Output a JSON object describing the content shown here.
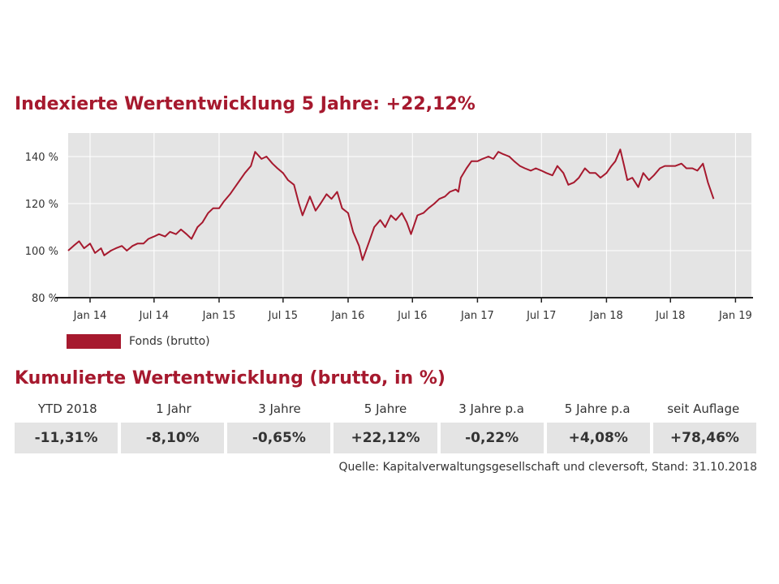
{
  "chart_title": "Indexierte Wertentwicklung 5 Jahre: +22,12%",
  "legend_label": "Fonds (brutto)",
  "table_title": "Kumulierte Wertentwicklung (brutto, in %)",
  "table": {
    "headers": [
      "YTD 2018",
      "1 Jahr",
      "3 Jahre",
      "5 Jahre",
      "3 Jahre p.a",
      "5 Jahre p.a",
      "seit Auflage"
    ],
    "values": [
      "-11,31%",
      "-8,10%",
      "-0,65%",
      "+22,12%",
      "-0,22%",
      "+4,08%",
      "+78,46%"
    ]
  },
  "source": "Quelle: Kapitalverwaltungsgesellschaft und cleversoft, Stand: 31.10.2018",
  "colors": {
    "accent": "#a6192e",
    "plot_bg": "#e4e4e4"
  },
  "chart_data": {
    "type": "line",
    "title": "Indexierte Wertentwicklung 5 Jahre: +22,12%",
    "xlabel": "",
    "ylabel": "",
    "ylim": [
      80,
      150
    ],
    "xlim": [
      "2013-10-31",
      "2019-02-15"
    ],
    "y_ticks": [
      80,
      100,
      120,
      140
    ],
    "y_tick_labels": [
      "80 %",
      "100 %",
      "120 %",
      "140 %"
    ],
    "x_ticks": [
      "2014-01-01",
      "2014-07-01",
      "2015-01-01",
      "2015-07-01",
      "2016-01-01",
      "2016-07-01",
      "2017-01-01",
      "2017-07-01",
      "2018-01-01",
      "2018-07-01",
      "2019-01-01"
    ],
    "x_tick_labels": [
      "Jan 14",
      "Jul 14",
      "Jan 15",
      "Jul 15",
      "Jan 16",
      "Jul 16",
      "Jan 17",
      "Jul 17",
      "Jan 18",
      "Jul 18",
      "Jan 19"
    ],
    "grid": true,
    "legend": "bottom-left",
    "series": [
      {
        "name": "Fonds (brutto)",
        "color": "#a6192e",
        "x": [
          "2013-10-31",
          "2013-11-15",
          "2013-12-01",
          "2013-12-15",
          "2014-01-01",
          "2014-01-15",
          "2014-02-01",
          "2014-02-10",
          "2014-03-01",
          "2014-03-15",
          "2014-04-01",
          "2014-04-15",
          "2014-05-01",
          "2014-05-15",
          "2014-06-01",
          "2014-06-15",
          "2014-07-01",
          "2014-07-15",
          "2014-08-01",
          "2014-08-15",
          "2014-09-01",
          "2014-09-15",
          "2014-10-01",
          "2014-10-15",
          "2014-11-01",
          "2014-11-15",
          "2014-12-01",
          "2014-12-15",
          "2015-01-01",
          "2015-01-15",
          "2015-02-01",
          "2015-02-15",
          "2015-03-01",
          "2015-03-15",
          "2015-04-01",
          "2015-04-13",
          "2015-05-01",
          "2015-05-15",
          "2015-06-01",
          "2015-06-15",
          "2015-07-01",
          "2015-07-15",
          "2015-08-01",
          "2015-08-15",
          "2015-08-25",
          "2015-09-15",
          "2015-10-01",
          "2015-10-15",
          "2015-11-01",
          "2015-11-15",
          "2015-12-01",
          "2015-12-15",
          "2016-01-01",
          "2016-01-15",
          "2016-02-01",
          "2016-02-11",
          "2016-03-01",
          "2016-03-15",
          "2016-04-01",
          "2016-04-15",
          "2016-05-01",
          "2016-05-15",
          "2016-06-01",
          "2016-06-15",
          "2016-06-27",
          "2016-07-15",
          "2016-08-01",
          "2016-08-15",
          "2016-09-01",
          "2016-09-15",
          "2016-10-01",
          "2016-10-15",
          "2016-11-01",
          "2016-11-08",
          "2016-11-15",
          "2016-12-01",
          "2016-12-15",
          "2017-01-01",
          "2017-01-15",
          "2017-02-01",
          "2017-02-15",
          "2017-03-01",
          "2017-03-15",
          "2017-04-01",
          "2017-04-15",
          "2017-05-01",
          "2017-05-15",
          "2017-06-01",
          "2017-06-15",
          "2017-07-01",
          "2017-07-15",
          "2017-08-01",
          "2017-08-15",
          "2017-09-01",
          "2017-09-15",
          "2017-10-01",
          "2017-10-15",
          "2017-11-01",
          "2017-11-15",
          "2017-12-01",
          "2017-12-15",
          "2018-01-01",
          "2018-01-15",
          "2018-01-26",
          "2018-02-09",
          "2018-02-20",
          "2018-03-01",
          "2018-03-15",
          "2018-04-01",
          "2018-04-15",
          "2018-05-01",
          "2018-05-15",
          "2018-06-01",
          "2018-06-15",
          "2018-07-01",
          "2018-07-15",
          "2018-08-01",
          "2018-08-15",
          "2018-09-01",
          "2018-09-15",
          "2018-10-01",
          "2018-10-15",
          "2018-10-31"
        ],
        "values": [
          100,
          102,
          104,
          101,
          103,
          99,
          101,
          98,
          100,
          101,
          102,
          100,
          102,
          103,
          103,
          105,
          106,
          107,
          106,
          108,
          107,
          109,
          107,
          105,
          110,
          112,
          116,
          118,
          118,
          121,
          124,
          127,
          130,
          133,
          136,
          142,
          139,
          140,
          137,
          135,
          133,
          130,
          128,
          120,
          115,
          123,
          117,
          120,
          124,
          122,
          125,
          118,
          116,
          108,
          102,
          96,
          104,
          110,
          113,
          110,
          115,
          113,
          116,
          112,
          107,
          115,
          116,
          118,
          120,
          122,
          123,
          125,
          126,
          125,
          131,
          135,
          138,
          138,
          139,
          140,
          139,
          142,
          141,
          140,
          138,
          136,
          135,
          134,
          135,
          134,
          133,
          132,
          136,
          133,
          128,
          129,
          131,
          135,
          133,
          133,
          131,
          133,
          136,
          138,
          143,
          136,
          130,
          131,
          127,
          133,
          130,
          132,
          135,
          136,
          136,
          136,
          137,
          135,
          135,
          134,
          137,
          129,
          122
        ]
      }
    ]
  }
}
